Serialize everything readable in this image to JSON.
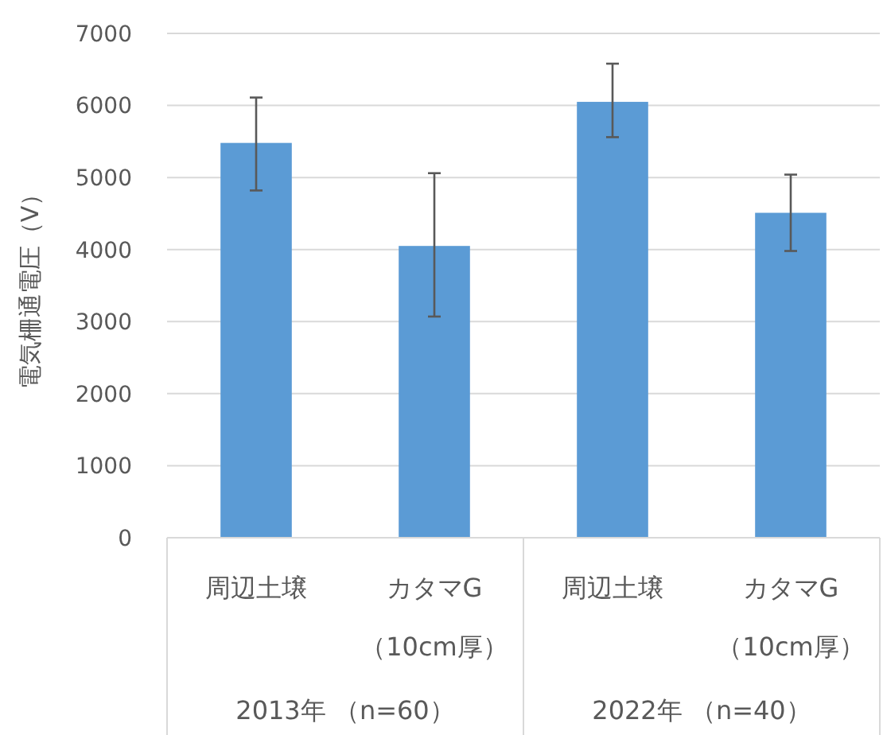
{
  "chart_data": {
    "type": "bar",
    "ylabel": "電気柵通電圧（V）",
    "categories": [
      "周辺土壌",
      "カタマG\n（10cm厚）",
      "周辺土壌",
      "カタマG\n（10cm厚）"
    ],
    "values": [
      5480,
      4050,
      6050,
      4510
    ],
    "errors": [
      [
        4820,
        6110
      ],
      [
        3070,
        5060
      ],
      [
        5560,
        6580
      ],
      [
        3980,
        5040
      ]
    ],
    "color": "#5b9bd5",
    "ylim": [
      0,
      7000
    ],
    "yticks": [
      0,
      1000,
      2000,
      3000,
      4000,
      5000,
      6000,
      7000
    ],
    "grid": "y",
    "annotations": [
      "2013年 （n=60）",
      "2022年 （n=40）"
    ]
  }
}
